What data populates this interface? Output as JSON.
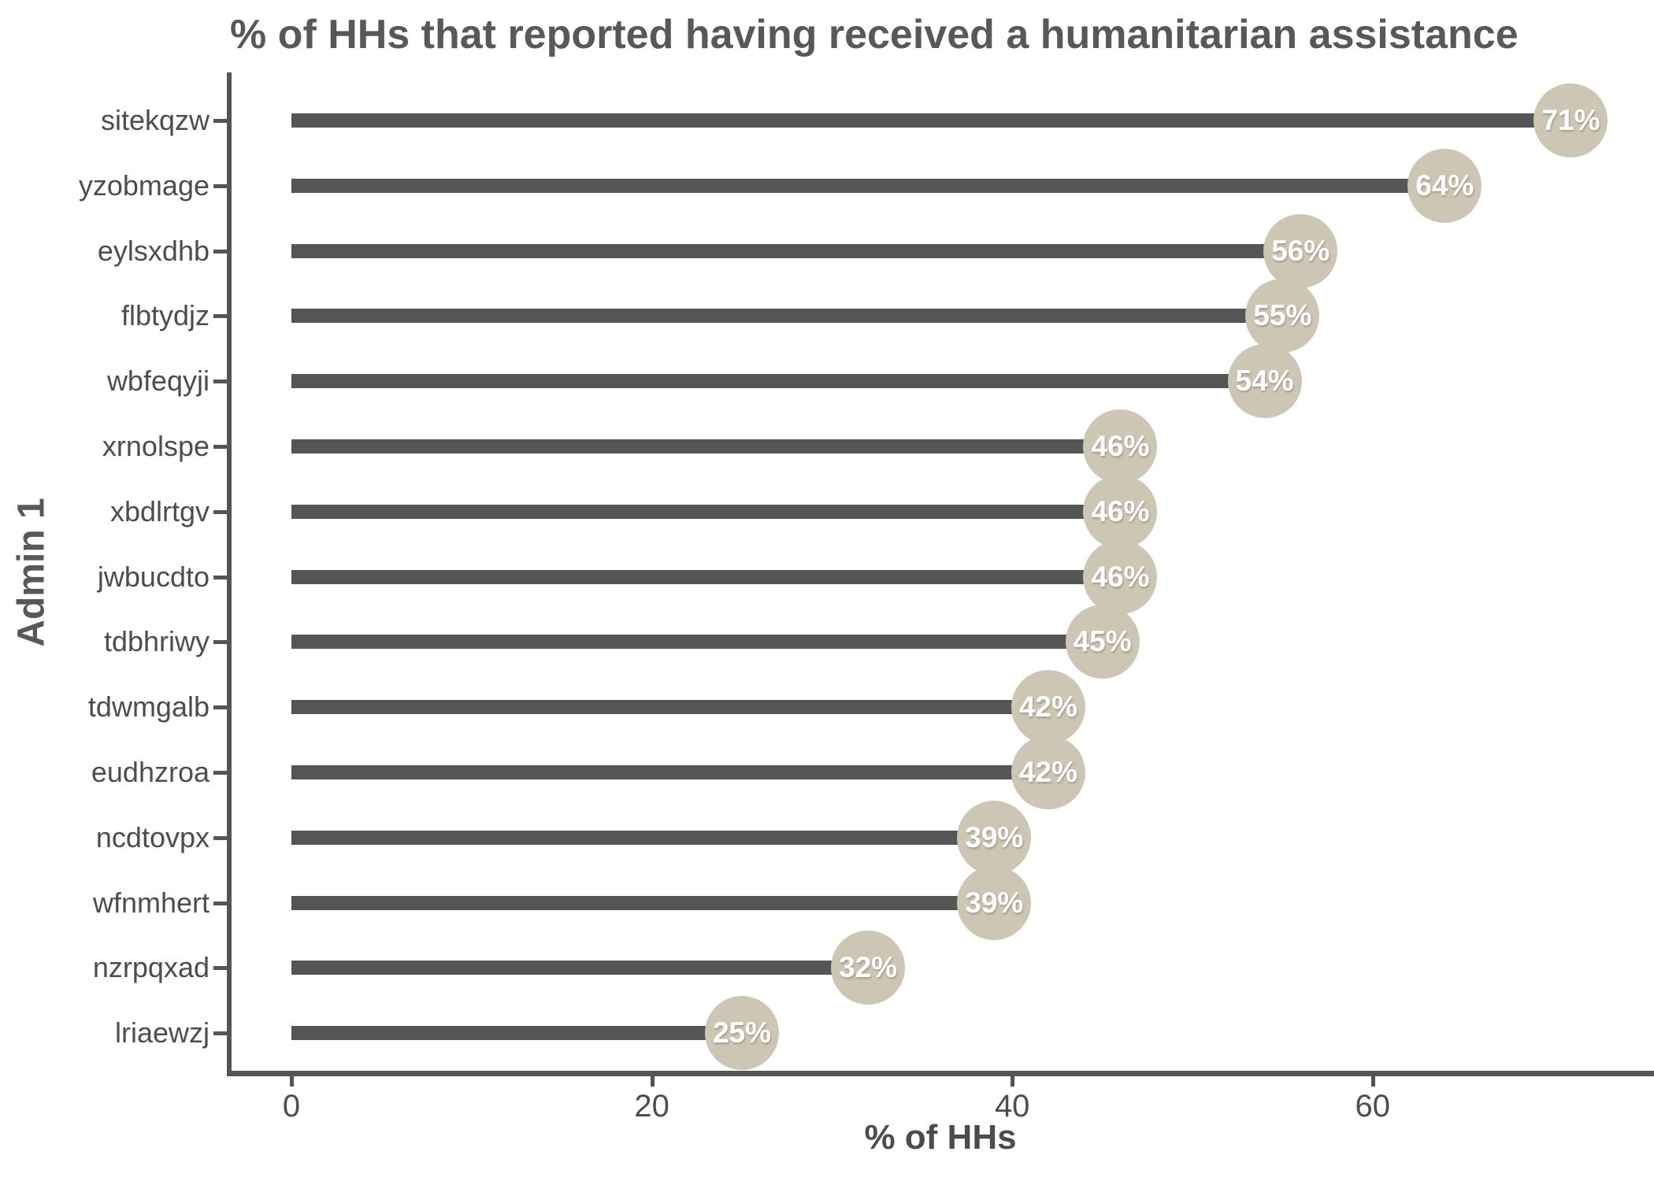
{
  "title": "% of HHs that reported having received a humanitarian assistance",
  "chart_data": {
    "type": "bar",
    "variant": "horizontal-lollipop",
    "title": "% of HHs that reported having received a humanitarian assistance",
    "xlabel": "% of HHs",
    "ylabel": "Admin 1",
    "categories": [
      "sitekqzw",
      "yzobmage",
      "eylsxdhb",
      "flbtydjz",
      "wbfeqyji",
      "xrnolspe",
      "xbdlrtgv",
      "jwbucdto",
      "tdbhriwy",
      "tdwmgalb",
      "eudhzroa",
      "ncdtovpx",
      "wfnmhert",
      "nzrpqxad",
      "lriaewzj"
    ],
    "values": [
      71,
      64,
      56,
      55,
      54,
      46,
      46,
      46,
      45,
      42,
      42,
      39,
      39,
      32,
      25
    ],
    "value_labels": [
      "71%",
      "64%",
      "56%",
      "55%",
      "54%",
      "46%",
      "46%",
      "46%",
      "45%",
      "42%",
      "42%",
      "39%",
      "39%",
      "32%",
      "25%"
    ],
    "x_ticks": [
      0,
      20,
      40,
      60
    ],
    "x_tick_labels": [
      "0",
      "20",
      "40",
      "60"
    ],
    "xlim": [
      0,
      75
    ],
    "grid": false,
    "legend": false,
    "colors": {
      "bar": "#555558",
      "axis": "#555558",
      "dot": "#cdc6b4",
      "value_text": "#ffffff",
      "label_text": "#4d4d4f",
      "title_text": "#58585b"
    }
  }
}
